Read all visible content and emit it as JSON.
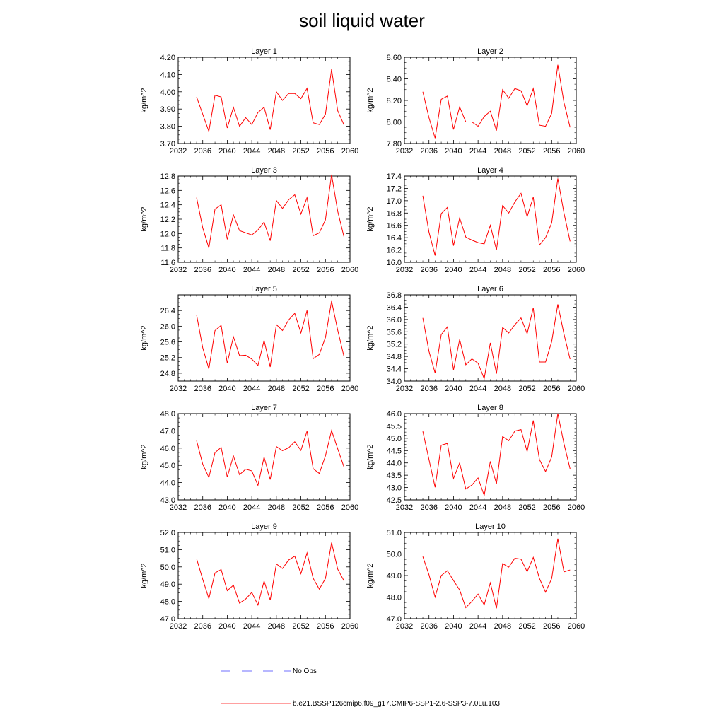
{
  "title": "soil liquid water",
  "colors": {
    "model": "#ff0000",
    "obs": "#4040ff",
    "axis": "#000000"
  },
  "legend": {
    "obs_label": "No Obs",
    "model_label": "b.e21.BSSP126cmip6.f09_g17.CMIP6-SSP1-2.6-SSP3-7.0Lu.103"
  },
  "chart_data": [
    {
      "type": "line",
      "title": "Layer 1",
      "ylabel": "kg/m^2",
      "xlim": [
        2032,
        2060
      ],
      "ylim": [
        3.7,
        4.2
      ],
      "xticks": [
        "2032",
        "2036",
        "2040",
        "2044",
        "2048",
        "2052",
        "2056",
        "2060"
      ],
      "yticks": [
        "3.70",
        "3.80",
        "3.90",
        "4.00",
        "4.10",
        "4.20"
      ],
      "x": [
        2035,
        2036,
        2037,
        2038,
        2039,
        2040,
        2041,
        2042,
        2043,
        2044,
        2045,
        2046,
        2047,
        2048,
        2049,
        2050,
        2051,
        2052,
        2053,
        2054,
        2055,
        2056,
        2057,
        2058,
        2059
      ],
      "series": [
        {
          "name": "b.e21.BSSP126cmip6.f09_g17.CMIP6-SSP1-2.6-SSP3-7.0Lu.103",
          "values": [
            3.97,
            3.87,
            3.77,
            3.98,
            3.97,
            3.79,
            3.91,
            3.8,
            3.85,
            3.81,
            3.88,
            3.91,
            3.78,
            4.0,
            3.95,
            3.99,
            3.99,
            3.96,
            4.02,
            3.82,
            3.81,
            3.87,
            4.13,
            3.89,
            3.81
          ]
        }
      ]
    },
    {
      "type": "line",
      "title": "Layer 2",
      "ylabel": "kg/m^2",
      "xlim": [
        2032,
        2060
      ],
      "ylim": [
        7.8,
        8.6
      ],
      "xticks": [
        "2032",
        "2036",
        "2040",
        "2044",
        "2048",
        "2052",
        "2056",
        "2060"
      ],
      "yticks": [
        "7.80",
        "8.00",
        "8.20",
        "8.40",
        "8.60"
      ],
      "x": [
        2035,
        2036,
        2037,
        2038,
        2039,
        2040,
        2041,
        2042,
        2043,
        2044,
        2045,
        2046,
        2047,
        2048,
        2049,
        2050,
        2051,
        2052,
        2053,
        2054,
        2055,
        2056,
        2057,
        2058,
        2059
      ],
      "series": [
        {
          "name": "b.e21.BSSP126cmip6.f09_g17.CMIP6-SSP1-2.6-SSP3-7.0Lu.103",
          "values": [
            8.28,
            8.04,
            7.85,
            8.21,
            8.24,
            7.93,
            8.14,
            8.0,
            8.0,
            7.96,
            8.05,
            8.1,
            7.92,
            8.3,
            8.22,
            8.31,
            8.29,
            8.15,
            8.31,
            7.97,
            7.96,
            8.08,
            8.53,
            8.18,
            7.95
          ]
        }
      ]
    },
    {
      "type": "line",
      "title": "Layer 3",
      "ylabel": "kg/m^2",
      "xlim": [
        2032,
        2060
      ],
      "ylim": [
        11.6,
        12.8
      ],
      "xticks": [
        "2032",
        "2036",
        "2040",
        "2044",
        "2048",
        "2052",
        "2056",
        "2060"
      ],
      "yticks": [
        "11.6",
        "11.8",
        "12.0",
        "12.2",
        "12.4",
        "12.6",
        "12.8"
      ],
      "x": [
        2035,
        2036,
        2037,
        2038,
        2039,
        2040,
        2041,
        2042,
        2043,
        2044,
        2045,
        2046,
        2047,
        2048,
        2049,
        2050,
        2051,
        2052,
        2053,
        2054,
        2055,
        2056,
        2057,
        2058,
        2059
      ],
      "series": [
        {
          "name": "b.e21.BSSP126cmip6.f09_g17.CMIP6-SSP1-2.6-SSP3-7.0Lu.103",
          "values": [
            12.5,
            12.08,
            11.8,
            12.34,
            12.4,
            11.92,
            12.26,
            12.04,
            12.01,
            11.98,
            12.05,
            12.16,
            11.9,
            12.46,
            12.35,
            12.47,
            12.54,
            12.27,
            12.5,
            11.97,
            12.01,
            12.19,
            12.82,
            12.31,
            11.96
          ]
        }
      ]
    },
    {
      "type": "line",
      "title": "Layer 4",
      "ylabel": "kg/m^2",
      "xlim": [
        2032,
        2060
      ],
      "ylim": [
        16.0,
        17.4
      ],
      "xticks": [
        "2032",
        "2036",
        "2040",
        "2044",
        "2048",
        "2052",
        "2056",
        "2060"
      ],
      "yticks": [
        "16.0",
        "16.2",
        "16.4",
        "16.6",
        "16.8",
        "17.0",
        "17.2",
        "17.4"
      ],
      "x": [
        2035,
        2036,
        2037,
        2038,
        2039,
        2040,
        2041,
        2042,
        2043,
        2044,
        2045,
        2046,
        2047,
        2048,
        2049,
        2050,
        2051,
        2052,
        2053,
        2054,
        2055,
        2056,
        2057,
        2058,
        2059
      ],
      "series": [
        {
          "name": "b.e21.BSSP126cmip6.f09_g17.CMIP6-SSP1-2.6-SSP3-7.0Lu.103",
          "values": [
            17.08,
            16.49,
            16.11,
            16.79,
            16.89,
            16.27,
            16.72,
            16.41,
            16.36,
            16.32,
            16.3,
            16.6,
            16.2,
            16.92,
            16.8,
            16.98,
            17.12,
            16.74,
            17.06,
            16.28,
            16.4,
            16.64,
            17.36,
            16.8,
            16.34
          ]
        }
      ]
    },
    {
      "type": "line",
      "title": "Layer 5",
      "ylabel": "kg/m^2",
      "xlim": [
        2032,
        2060
      ],
      "ylim": [
        24.6,
        26.8
      ],
      "xticks": [
        "2032",
        "2036",
        "2040",
        "2044",
        "2048",
        "2052",
        "2056",
        "2060"
      ],
      "yticks": [
        "24.8",
        "25.2",
        "25.6",
        "26.0",
        "26.4"
      ],
      "x": [
        2035,
        2036,
        2037,
        2038,
        2039,
        2040,
        2041,
        2042,
        2043,
        2044,
        2045,
        2046,
        2047,
        2048,
        2049,
        2050,
        2051,
        2052,
        2053,
        2054,
        2055,
        2056,
        2057,
        2058,
        2059
      ],
      "series": [
        {
          "name": "b.e21.BSSP126cmip6.f09_g17.CMIP6-SSP1-2.6-SSP3-7.0Lu.103",
          "values": [
            26.29,
            25.45,
            24.91,
            25.89,
            26.02,
            25.06,
            25.73,
            25.25,
            25.26,
            25.16,
            25.0,
            25.64,
            24.96,
            26.04,
            25.89,
            26.16,
            26.33,
            25.83,
            26.4,
            25.17,
            25.28,
            25.71,
            26.64,
            25.9,
            25.24
          ]
        }
      ]
    },
    {
      "type": "line",
      "title": "Layer 6",
      "ylabel": "kg/m^2",
      "xlim": [
        2032,
        2060
      ],
      "ylim": [
        34.0,
        36.8
      ],
      "xticks": [
        "2032",
        "2036",
        "2040",
        "2044",
        "2048",
        "2052",
        "2056",
        "2060"
      ],
      "yticks": [
        "34.0",
        "34.4",
        "34.8",
        "35.2",
        "35.6",
        "36.0",
        "36.4",
        "36.8"
      ],
      "x": [
        2035,
        2036,
        2037,
        2038,
        2039,
        2040,
        2041,
        2042,
        2043,
        2044,
        2045,
        2046,
        2047,
        2048,
        2049,
        2050,
        2051,
        2052,
        2053,
        2054,
        2055,
        2056,
        2057,
        2058,
        2059
      ],
      "series": [
        {
          "name": "b.e21.BSSP126cmip6.f09_g17.CMIP6-SSP1-2.6-SSP3-7.0Lu.103",
          "values": [
            36.05,
            34.97,
            34.26,
            35.51,
            35.76,
            34.36,
            35.35,
            34.53,
            34.72,
            34.58,
            34.08,
            35.24,
            34.24,
            35.74,
            35.56,
            35.83,
            36.05,
            35.54,
            36.38,
            34.62,
            34.62,
            35.28,
            36.49,
            35.53,
            34.71
          ]
        }
      ]
    },
    {
      "type": "line",
      "title": "Layer 7",
      "ylabel": "kg/m^2",
      "xlim": [
        2032,
        2060
      ],
      "ylim": [
        43.0,
        48.0
      ],
      "xticks": [
        "2032",
        "2036",
        "2040",
        "2044",
        "2048",
        "2052",
        "2056",
        "2060"
      ],
      "yticks": [
        "43.0",
        "44.0",
        "45.0",
        "46.0",
        "47.0",
        "48.0"
      ],
      "x": [
        2035,
        2036,
        2037,
        2038,
        2039,
        2040,
        2041,
        2042,
        2043,
        2044,
        2045,
        2046,
        2047,
        2048,
        2049,
        2050,
        2051,
        2052,
        2053,
        2054,
        2055,
        2056,
        2057,
        2058,
        2059
      ],
      "series": [
        {
          "name": "b.e21.BSSP126cmip6.f09_g17.CMIP6-SSP1-2.6-SSP3-7.0Lu.103",
          "values": [
            46.43,
            45.07,
            44.3,
            45.74,
            46.04,
            44.32,
            45.55,
            44.46,
            44.78,
            44.68,
            43.84,
            45.48,
            44.18,
            46.09,
            45.85,
            46.02,
            46.37,
            45.87,
            46.98,
            44.81,
            44.53,
            45.55,
            47.02,
            45.96,
            44.93
          ]
        }
      ]
    },
    {
      "type": "line",
      "title": "Layer 8",
      "ylabel": "kg/m^2",
      "xlim": [
        2032,
        2060
      ],
      "ylim": [
        42.5,
        46.0
      ],
      "xticks": [
        "2032",
        "2036",
        "2040",
        "2044",
        "2048",
        "2052",
        "2056",
        "2060"
      ],
      "yticks": [
        "42.5",
        "43.0",
        "43.5",
        "44.0",
        "44.5",
        "45.0",
        "45.5",
        "46.0"
      ],
      "x": [
        2035,
        2036,
        2037,
        2038,
        2039,
        2040,
        2041,
        2042,
        2043,
        2044,
        2045,
        2046,
        2047,
        2048,
        2049,
        2050,
        2051,
        2052,
        2053,
        2054,
        2055,
        2056,
        2057,
        2058,
        2059
      ],
      "series": [
        {
          "name": "b.e21.BSSP126cmip6.f09_g17.CMIP6-SSP1-2.6-SSP3-7.0Lu.103",
          "values": [
            45.28,
            44.14,
            43.01,
            44.72,
            44.79,
            43.37,
            44.0,
            42.94,
            43.1,
            43.39,
            42.68,
            44.06,
            43.15,
            45.07,
            44.9,
            45.29,
            45.35,
            44.46,
            45.72,
            44.14,
            43.65,
            44.24,
            46.0,
            44.78,
            43.76
          ]
        }
      ]
    },
    {
      "type": "line",
      "title": "Layer 9",
      "ylabel": "kg/m^2",
      "xlim": [
        2032,
        2060
      ],
      "ylim": [
        47.0,
        52.0
      ],
      "xticks": [
        "2032",
        "2036",
        "2040",
        "2044",
        "2048",
        "2052",
        "2056",
        "2060"
      ],
      "yticks": [
        "47.0",
        "48.0",
        "49.0",
        "50.0",
        "51.0",
        "52.0"
      ],
      "x": [
        2035,
        2036,
        2037,
        2038,
        2039,
        2040,
        2041,
        2042,
        2043,
        2044,
        2045,
        2046,
        2047,
        2048,
        2049,
        2050,
        2051,
        2052,
        2053,
        2054,
        2055,
        2056,
        2057,
        2058,
        2059
      ],
      "series": [
        {
          "name": "b.e21.BSSP126cmip6.f09_g17.CMIP6-SSP1-2.6-SSP3-7.0Lu.103",
          "values": [
            50.48,
            49.28,
            48.16,
            49.65,
            49.85,
            48.62,
            48.94,
            47.9,
            48.14,
            48.52,
            47.79,
            49.18,
            48.07,
            50.17,
            49.91,
            50.4,
            50.62,
            49.61,
            50.81,
            49.34,
            48.71,
            49.33,
            51.41,
            49.87,
            49.21
          ]
        }
      ]
    },
    {
      "type": "line",
      "title": "Layer 10",
      "ylabel": "kg/m^2",
      "xlim": [
        2032,
        2060
      ],
      "ylim": [
        47.0,
        51.0
      ],
      "xticks": [
        "2032",
        "2036",
        "2040",
        "2044",
        "2048",
        "2052",
        "2056",
        "2060"
      ],
      "yticks": [
        "47.0",
        "48.0",
        "49.0",
        "50.0",
        "51.0"
      ],
      "x": [
        2035,
        2036,
        2037,
        2038,
        2039,
        2040,
        2041,
        2042,
        2043,
        2044,
        2045,
        2046,
        2047,
        2048,
        2049,
        2050,
        2051,
        2052,
        2053,
        2054,
        2055,
        2056,
        2057,
        2058,
        2059
      ],
      "series": [
        {
          "name": "b.e21.BSSP126cmip6.f09_g17.CMIP6-SSP1-2.6-SSP3-7.0Lu.103",
          "values": [
            49.88,
            49.04,
            48.0,
            49.0,
            49.22,
            48.77,
            48.33,
            47.51,
            47.8,
            48.14,
            47.64,
            48.66,
            47.48,
            49.55,
            49.39,
            49.8,
            49.76,
            49.18,
            49.84,
            48.87,
            48.23,
            48.86,
            50.71,
            49.17,
            49.26
          ]
        }
      ]
    }
  ]
}
